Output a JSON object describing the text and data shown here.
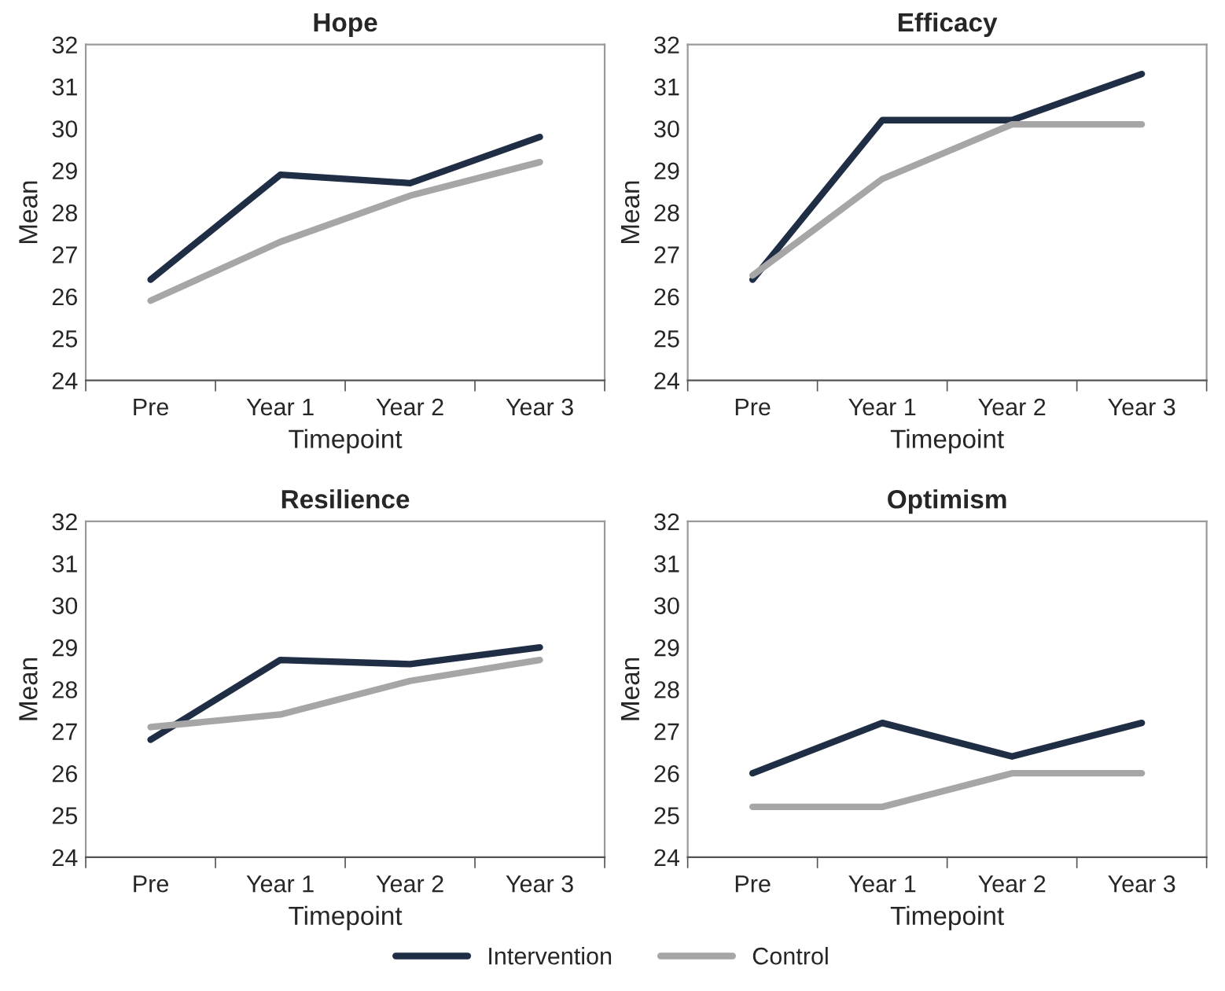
{
  "chart_data": [
    {
      "type": "line",
      "title": "Hope",
      "xlabel": "Timepoint",
      "ylabel": "Mean",
      "categories": [
        "Pre",
        "Year 1",
        "Year 2",
        "Year 3"
      ],
      "ylim": [
        24,
        32
      ],
      "yticks": [
        24,
        25,
        26,
        27,
        28,
        29,
        30,
        31,
        32
      ],
      "grid": false,
      "legend": "bottom",
      "marker": "none",
      "line_style": "solid",
      "series": [
        {
          "name": "Intervention",
          "color": "#1f2d45",
          "values": [
            26.4,
            28.9,
            28.7,
            29.8
          ]
        },
        {
          "name": "Control",
          "color": "#a6a6a6",
          "values": [
            25.9,
            27.3,
            28.4,
            29.2
          ]
        }
      ]
    },
    {
      "type": "line",
      "title": "Efficacy",
      "xlabel": "Timepoint",
      "ylabel": "Mean",
      "categories": [
        "Pre",
        "Year 1",
        "Year 2",
        "Year 3"
      ],
      "ylim": [
        24,
        32
      ],
      "yticks": [
        24,
        25,
        26,
        27,
        28,
        29,
        30,
        31,
        32
      ],
      "grid": false,
      "marker": "none",
      "line_style": "solid",
      "series": [
        {
          "color": "#1f2d45",
          "values": [
            26.4,
            30.2,
            30.2,
            31.3
          ]
        },
        {
          "color": "#a6a6a6",
          "values": [
            26.5,
            28.8,
            30.1,
            30.1
          ]
        }
      ]
    },
    {
      "type": "line",
      "title": "Resilience",
      "xlabel": "Timepoint",
      "ylabel": "Mean",
      "categories": [
        "Pre",
        "Year 1",
        "Year 2",
        "Year 3"
      ],
      "ylim": [
        24,
        32
      ],
      "yticks": [
        24,
        25,
        26,
        27,
        28,
        29,
        30,
        31,
        32
      ],
      "grid": false,
      "marker": "none",
      "line_style": "solid",
      "series": [
        {
          "color": "#1f2d45",
          "values": [
            26.8,
            28.7,
            28.6,
            29.0
          ]
        },
        {
          "color": "#a6a6a6",
          "values": [
            27.1,
            27.4,
            28.2,
            28.7
          ]
        }
      ]
    },
    {
      "type": "line",
      "title": "Optimism",
      "xlabel": "Timepoint",
      "ylabel": "Mean",
      "categories": [
        "Pre",
        "Year 1",
        "Year 2",
        "Year 3"
      ],
      "ylim": [
        24,
        32
      ],
      "yticks": [
        24,
        25,
        26,
        27,
        28,
        29,
        30,
        31,
        32
      ],
      "grid": false,
      "marker": "none",
      "line_style": "solid",
      "series": [
        {
          "color": "#1f2d45",
          "values": [
            26.0,
            27.2,
            26.4,
            27.2
          ]
        },
        {
          "color": "#a6a6a6",
          "values": [
            25.2,
            25.2,
            26.0,
            26.0
          ]
        }
      ]
    }
  ]
}
